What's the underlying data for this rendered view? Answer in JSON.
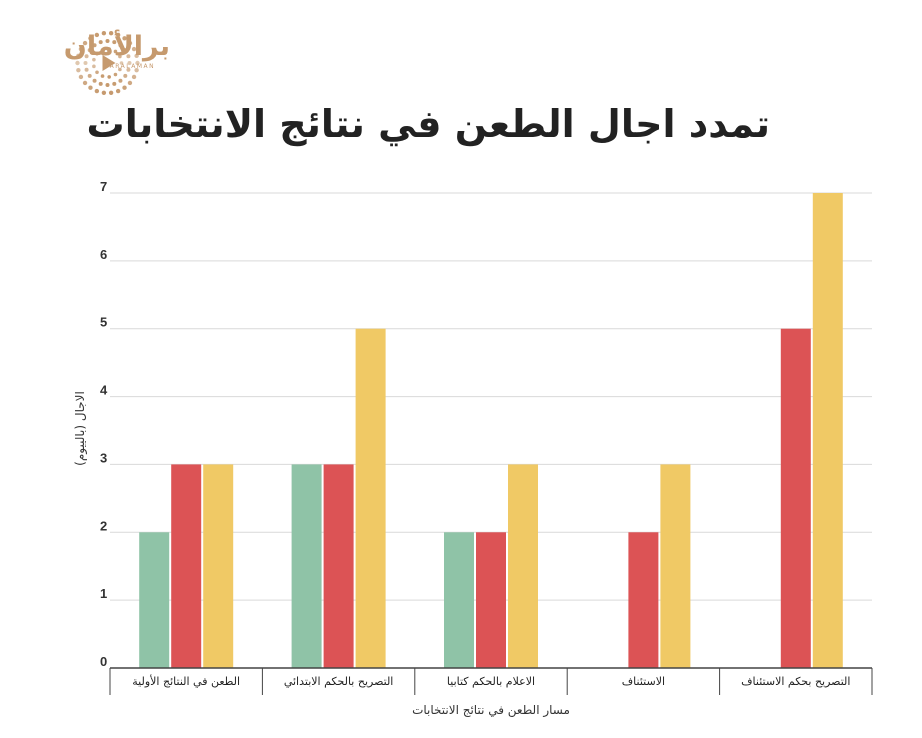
{
  "logo": {
    "text": "براﻷمان",
    "subtext": "BARALAMAN",
    "color": "#c69a6e"
  },
  "chart_data": {
    "type": "bar",
    "title": "تمدد اجال الطعن في نتائج الانتخابات",
    "xlabel": "مسار الطعن في نتائج الانتخابات",
    "ylabel": "الاجال (بالييوم)",
    "categories": [
      "الطعن في النتائج الأولية",
      "التصريح بالحكم الابتدائي",
      "الاعلام بالحكم كتابيا",
      "الاستئناف",
      "التصريح بحكم الاستئناف"
    ],
    "series": [
      {
        "values": [
          2,
          3,
          2,
          0,
          0
        ],
        "color": "#8fc3a7"
      },
      {
        "values": [
          3,
          3,
          2,
          2,
          5
        ],
        "color": "#dc5355"
      },
      {
        "values": [
          3,
          5,
          3,
          3,
          7
        ],
        "color": "#f0c965"
      }
    ],
    "ylim": [
      0,
      7
    ],
    "yticks": [
      0,
      1,
      2,
      3,
      4,
      5,
      6,
      7
    ],
    "grid": true,
    "legend": "none"
  }
}
